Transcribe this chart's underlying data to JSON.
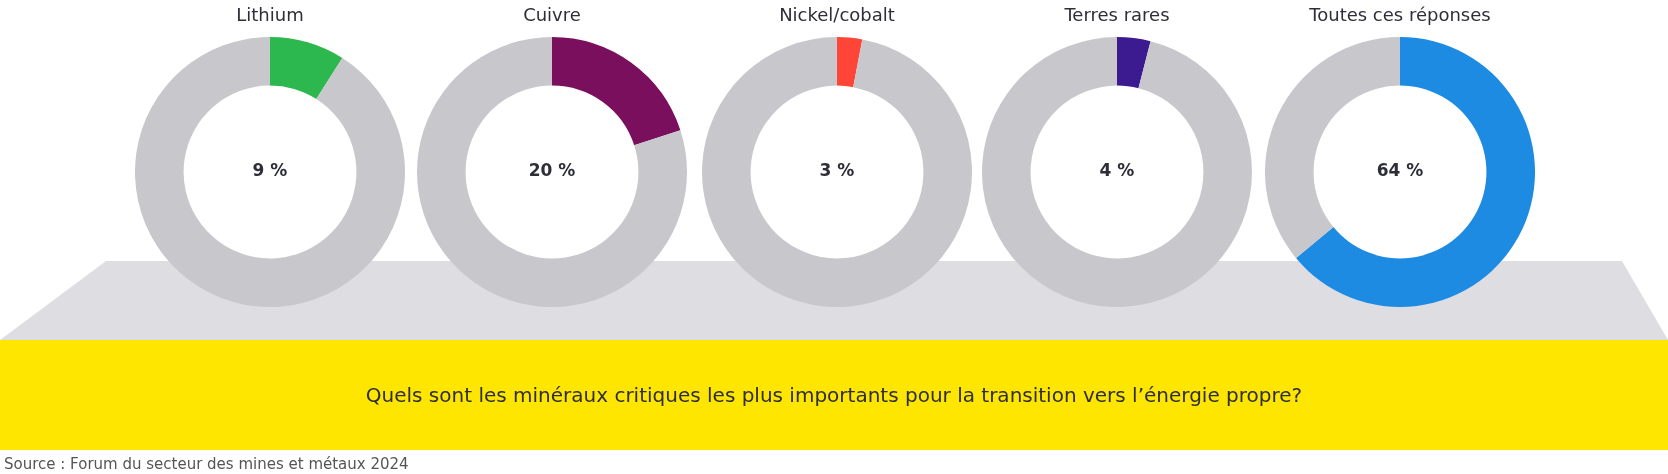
{
  "chart_data": [
    {
      "type": "donut",
      "title": "Lithium",
      "categories": [
        null,
        null
      ],
      "values": [
        9,
        91
      ],
      "colors": [
        "#2db84f",
        "#c8c8cc"
      ],
      "value_labels": [
        "9 %",
        null
      ]
    },
    {
      "type": "donut",
      "title": "Cuivre",
      "categories": [
        null,
        null
      ],
      "values": [
        20,
        80
      ],
      "colors": [
        "#7a0f5e",
        "#c8c8cc"
      ],
      "value_labels": [
        "20 %",
        null
      ]
    },
    {
      "type": "donut",
      "title": "Nickel/cobalt",
      "categories": [
        null,
        null
      ],
      "values": [
        3,
        97
      ],
      "colors": [
        "#ff4438",
        "#c8c8cc"
      ],
      "value_labels": [
        "3 %",
        null
      ]
    },
    {
      "type": "donut",
      "title": "Terres rares",
      "categories": [
        null,
        null
      ],
      "values": [
        4,
        96
      ],
      "colors": [
        "#3c1a8f",
        "#c8c8cc"
      ],
      "value_labels": [
        "4 %",
        null
      ]
    },
    {
      "type": "donut",
      "title": "Toutes ces réponses",
      "categories": [
        null,
        null
      ],
      "values": [
        64,
        36
      ],
      "colors": [
        "#1e8be3",
        "#c8c8cc"
      ],
      "value_labels": [
        "64 %",
        null
      ]
    },
    {
      "type": "other",
      "title": "Quels sont les minéraux critiques les plus importants pour la transition vers l’énergie propre?",
      "annotations": [
        "Source : Forum du secteur des mines et métaux 2024"
      ]
    }
  ]
}
